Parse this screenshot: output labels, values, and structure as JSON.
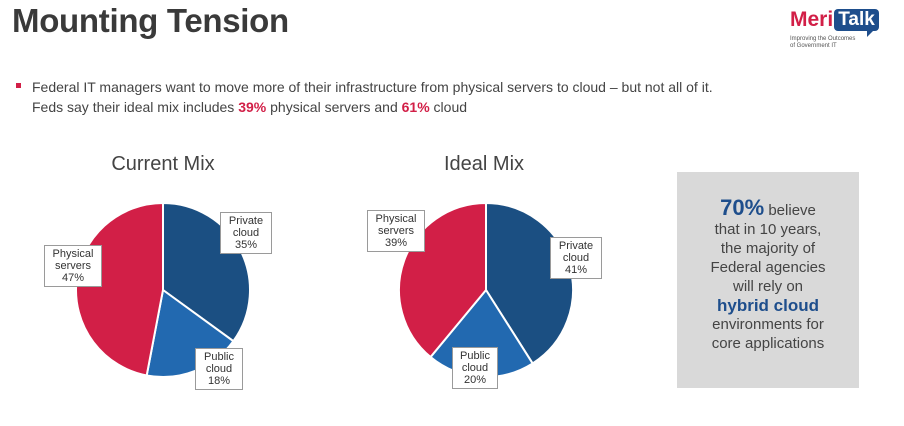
{
  "header": {
    "title": "Mounting Tension",
    "logo_meri": "Meri",
    "logo_talk": "Talk",
    "logo_tagline_1": "Improving the Outcomes",
    "logo_tagline_2": "of Government IT"
  },
  "bullet": {
    "line1": "Federal IT managers want to move more of their infrastructure from physical servers to cloud – but not all of it.",
    "line2_pre": "Feds say their ideal mix includes ",
    "line2_pct1": "39%",
    "line2_mid": " physical servers and ",
    "line2_pct2": "61%",
    "line2_post": " cloud"
  },
  "chart_data": [
    {
      "type": "pie",
      "title": "Current Mix",
      "slices": [
        {
          "label": "Private cloud",
          "value": 35,
          "value_label": "35%",
          "color": "#1b4f82"
        },
        {
          "label": "Public cloud",
          "value": 18,
          "value_label": "18%",
          "color": "#2269b0"
        },
        {
          "label": "Physical servers",
          "value": 47,
          "value_label": "47%",
          "color": "#d21f47"
        }
      ]
    },
    {
      "type": "pie",
      "title": "Ideal Mix",
      "slices": [
        {
          "label": "Private cloud",
          "value": 41,
          "value_label": "41%",
          "color": "#1b4f82"
        },
        {
          "label": "Public cloud",
          "value": 20,
          "value_label": "20%",
          "color": "#2269b0"
        },
        {
          "label": "Physical servers",
          "value": 39,
          "value_label": "39%",
          "color": "#d21f47"
        }
      ]
    }
  ],
  "callout": {
    "stat": "70%",
    "stat_suffix": " believe",
    "line2": "that in 10 years,",
    "line3": "the majority of",
    "line4": "Federal agencies",
    "line5": "will rely on",
    "emphasis": "hybrid cloud",
    "line7": "environments for",
    "line8": "core applications"
  }
}
